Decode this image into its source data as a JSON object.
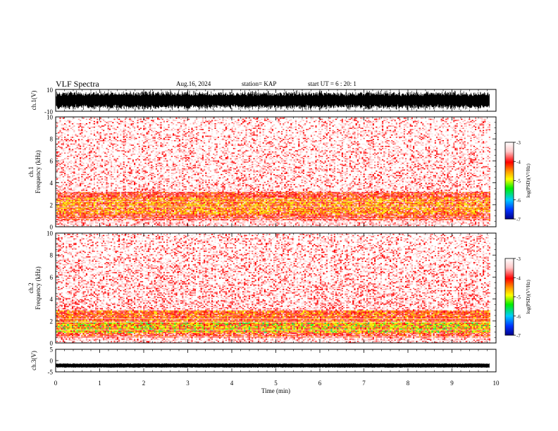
{
  "header": {
    "title": "VLF Spectra",
    "date": "Aug.16, 2024",
    "station": "station= KAP",
    "start_ut": "start  UT  =   6  : 20: 1"
  },
  "chart_data": [
    {
      "type": "line",
      "name": "ch1-waveform",
      "ylabel": "ch.1(V)",
      "ylim": [
        -10,
        10
      ],
      "yticks": [
        "10",
        "-10"
      ],
      "xlim": [
        0,
        9.85
      ],
      "trace_color": "#000000"
    },
    {
      "type": "heatmap",
      "name": "ch1-spectrogram",
      "ylabel": "ch.1\nFrequency  (kHz)",
      "ylabel_lines": [
        "ch.1",
        "Frequency  (kHz)"
      ],
      "ylim": [
        0,
        10
      ],
      "yticks": [
        "0",
        "2",
        "4",
        "6",
        "8",
        "10"
      ],
      "xlim": [
        0,
        9.85
      ],
      "colorbar": {
        "label": "log(PSD)(V²/Hz)",
        "range": [
          -7,
          -3
        ],
        "ticks": [
          "-3",
          "-4",
          "-5",
          "-6",
          "-7"
        ]
      },
      "bands": [
        {
          "range_khz": [
            0.0,
            0.7
          ],
          "level": "mixed white/red"
        },
        {
          "range_khz": [
            0.7,
            1.2
          ],
          "level": "-4 (red-orange)"
        },
        {
          "range_khz": [
            1.2,
            2.7
          ],
          "level": "-4 to -4.5 (orange/yellow)"
        },
        {
          "range_khz": [
            2.7,
            3.2
          ],
          "level": "-4 (red)"
        },
        {
          "range_khz": [
            3.2,
            10.0
          ],
          "level": "-3.5 to -4 (light red speckle)"
        }
      ]
    },
    {
      "type": "heatmap",
      "name": "ch2-spectrogram",
      "ylabel": "ch.2\nFrequency  (kHz)",
      "ylabel_lines": [
        "ch.2",
        "Frequency  (kHz)"
      ],
      "ylim": [
        0,
        10
      ],
      "yticks": [
        "0",
        "2",
        "4",
        "6",
        "8",
        "10"
      ],
      "xlim": [
        0,
        9.85
      ],
      "colorbar": {
        "label": "log(PSD)(V²/Hz)",
        "range": [
          -7,
          -3
        ],
        "ticks": [
          "-3",
          "-4",
          "-5",
          "-6",
          "-7"
        ]
      },
      "bands": [
        {
          "range_khz": [
            0.0,
            0.5
          ],
          "level": "mixed white/red"
        },
        {
          "range_khz": [
            0.5,
            1.0
          ],
          "level": "-4 (red/orange)"
        },
        {
          "range_khz": [
            1.0,
            2.0
          ],
          "level": "-4.5 to -5 (yellow/green)"
        },
        {
          "range_khz": [
            2.0,
            3.0
          ],
          "level": "-4 (orange/red)"
        },
        {
          "range_khz": [
            3.0,
            10.0
          ],
          "level": "-3.5 to -4 (light red speckle)"
        }
      ]
    },
    {
      "type": "line",
      "name": "ch3-waveform",
      "ylabel": "ch.3(V)",
      "ylim": [
        -5,
        5
      ],
      "yticks": [
        "5",
        "0",
        "-5"
      ],
      "xlim": [
        0,
        9.85
      ],
      "trace_color": "#000000"
    }
  ],
  "xaxis": {
    "label": "Time  (min)",
    "ticks": [
      "0",
      "1",
      "2",
      "3",
      "4",
      "5",
      "6",
      "7",
      "8",
      "9",
      "10"
    ],
    "range": [
      0,
      10
    ]
  },
  "colors": {
    "cb_stops": [
      "#00008b",
      "#0033ff",
      "#00ccff",
      "#00ee00",
      "#ffff00",
      "#ff9900",
      "#ff0000",
      "#ffc8c8",
      "#ffffff"
    ]
  }
}
